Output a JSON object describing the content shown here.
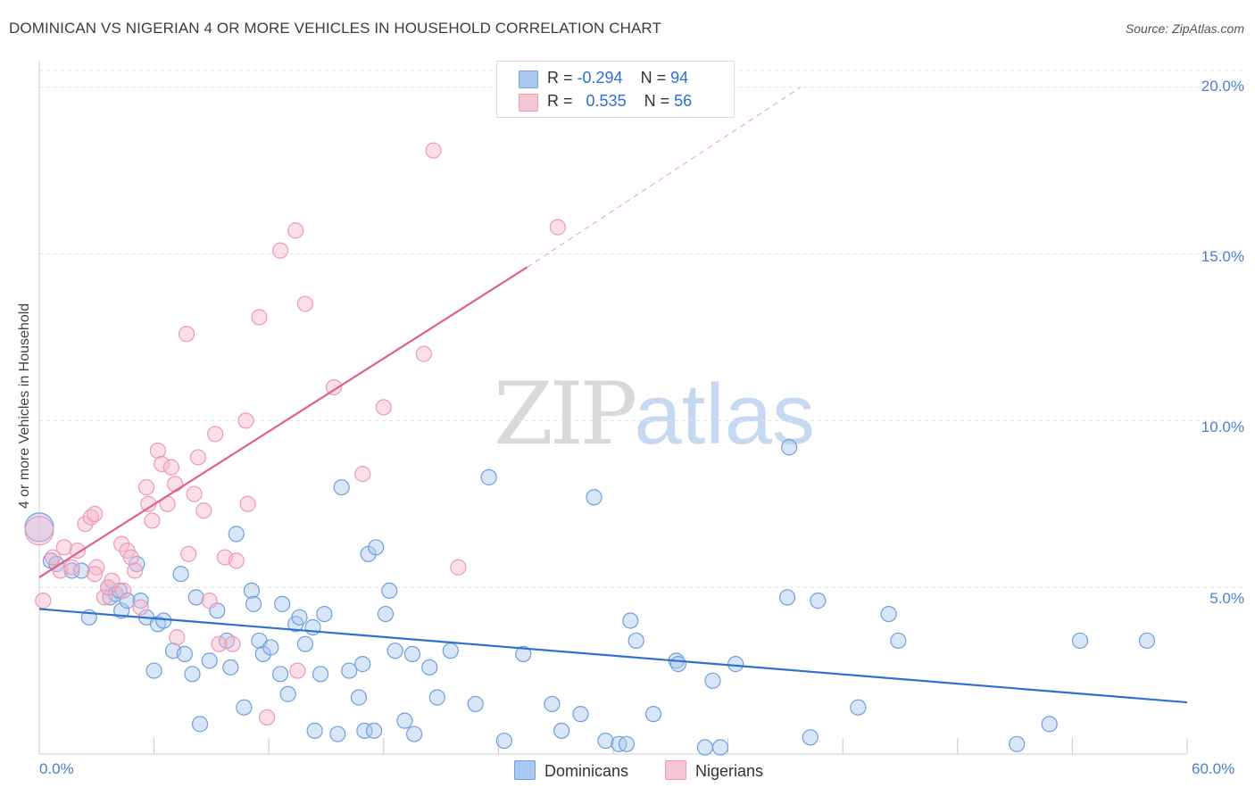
{
  "title": "DOMINICAN VS NIGERIAN 4 OR MORE VEHICLES IN HOUSEHOLD CORRELATION CHART",
  "source": "Source: ZipAtlas.com",
  "watermark": {
    "zip": "ZIP",
    "atlas": "atlas"
  },
  "stats": {
    "dominicans": {
      "r_label": "R =",
      "r_value": "-0.294",
      "n_label": "N =",
      "n_value": "94"
    },
    "nigerians": {
      "r_label": "R =",
      "r_value": "0.535",
      "n_label": "N =",
      "n_value": "56"
    }
  },
  "colors": {
    "dominicans_fill": "#a9c8f0",
    "dominicans_stroke": "#6f9fdc",
    "dominicans_line": "#2f6fcf",
    "nigerians_fill": "#f7b6cb",
    "nigerians_stroke": "#ec9ab5",
    "nigerians_line": "#e0608c",
    "grid": "#e3e3e3",
    "axis_text": "#4a7fd0"
  },
  "chart_data": {
    "type": "scatter",
    "title": "DOMINICAN VS NIGERIAN 4 OR MORE VEHICLES IN HOUSEHOLD CORRELATION CHART",
    "xlabel": "",
    "ylabel": "4 or more Vehicles in Household",
    "xlim": [
      0,
      60
    ],
    "ylim": [
      0,
      20.5
    ],
    "x_tick_labels": [
      "0.0%",
      "60.0%"
    ],
    "y_ticks": [
      5,
      10,
      15,
      20
    ],
    "y_tick_labels": [
      "5.0%",
      "10.0%",
      "15.0%",
      "20.0%"
    ],
    "legend": [
      "Dominicans",
      "Nigerians"
    ],
    "series": [
      {
        "name": "Dominicans",
        "r": -0.294,
        "n": 94,
        "trend": {
          "x0": 0,
          "y0": 4.35,
          "x1": 60,
          "y1": 1.55
        },
        "points": [
          [
            0.0,
            6.8
          ],
          [
            0.6,
            5.8
          ],
          [
            0.9,
            5.7
          ],
          [
            1.7,
            5.5
          ],
          [
            2.2,
            5.5
          ],
          [
            3.6,
            5.0
          ],
          [
            3.7,
            4.7
          ],
          [
            4.0,
            4.8
          ],
          [
            2.6,
            4.1
          ],
          [
            4.2,
            4.9
          ],
          [
            4.3,
            4.3
          ],
          [
            4.6,
            4.6
          ],
          [
            5.1,
            5.7
          ],
          [
            5.3,
            4.6
          ],
          [
            5.6,
            4.1
          ],
          [
            6.2,
            3.9
          ],
          [
            6.5,
            4.0
          ],
          [
            6.0,
            2.5
          ],
          [
            7.0,
            3.1
          ],
          [
            7.4,
            5.4
          ],
          [
            7.6,
            3.0
          ],
          [
            8.0,
            2.4
          ],
          [
            8.2,
            4.7
          ],
          [
            8.4,
            0.9
          ],
          [
            8.9,
            2.8
          ],
          [
            9.3,
            4.3
          ],
          [
            9.8,
            3.4
          ],
          [
            10.0,
            2.6
          ],
          [
            10.3,
            6.6
          ],
          [
            10.7,
            1.4
          ],
          [
            11.1,
            4.9
          ],
          [
            11.5,
            3.4
          ],
          [
            11.7,
            3.0
          ],
          [
            12.1,
            3.2
          ],
          [
            12.6,
            2.4
          ],
          [
            12.7,
            4.5
          ],
          [
            13.0,
            1.8
          ],
          [
            13.4,
            3.9
          ],
          [
            13.6,
            4.1
          ],
          [
            13.9,
            3.3
          ],
          [
            14.3,
            3.8
          ],
          [
            14.4,
            0.7
          ],
          [
            14.7,
            2.4
          ],
          [
            14.9,
            4.2
          ],
          [
            15.6,
            0.6
          ],
          [
            15.8,
            8.0
          ],
          [
            16.2,
            2.5
          ],
          [
            16.7,
            1.7
          ],
          [
            16.9,
            2.7
          ],
          [
            17.0,
            0.7
          ],
          [
            17.2,
            6.0
          ],
          [
            17.5,
            0.7
          ],
          [
            17.6,
            6.2
          ],
          [
            18.1,
            4.2
          ],
          [
            18.3,
            4.9
          ],
          [
            18.6,
            3.1
          ],
          [
            19.1,
            1.0
          ],
          [
            19.6,
            0.6
          ],
          [
            20.4,
            2.6
          ],
          [
            20.8,
            1.7
          ],
          [
            21.5,
            3.1
          ],
          [
            22.8,
            1.5
          ],
          [
            23.5,
            8.3
          ],
          [
            24.3,
            0.4
          ],
          [
            25.3,
            3.0
          ],
          [
            26.8,
            1.5
          ],
          [
            27.3,
            0.7
          ],
          [
            28.3,
            1.2
          ],
          [
            29.0,
            7.7
          ],
          [
            29.6,
            0.4
          ],
          [
            30.3,
            0.3
          ],
          [
            30.7,
            0.3
          ],
          [
            30.9,
            4.0
          ],
          [
            31.2,
            3.4
          ],
          [
            32.1,
            1.2
          ],
          [
            33.3,
            2.8
          ],
          [
            33.4,
            2.7
          ],
          [
            34.8,
            0.2
          ],
          [
            35.2,
            2.2
          ],
          [
            35.6,
            0.2
          ],
          [
            36.4,
            2.7
          ],
          [
            39.2,
            9.2
          ],
          [
            39.1,
            4.7
          ],
          [
            40.3,
            0.5
          ],
          [
            40.7,
            4.6
          ],
          [
            42.8,
            1.4
          ],
          [
            44.4,
            4.2
          ],
          [
            44.9,
            3.4
          ],
          [
            51.1,
            0.3
          ],
          [
            52.8,
            0.9
          ],
          [
            54.4,
            3.4
          ],
          [
            57.9,
            3.4
          ],
          [
            19.5,
            3.0
          ],
          [
            11.2,
            4.5
          ]
        ]
      },
      {
        "name": "Nigerians",
        "r": 0.535,
        "n": 56,
        "trend": {
          "x0": 0,
          "y0": 5.3,
          "x1": 25.5,
          "y1": 14.6
        },
        "trend_dashed": {
          "x0": 25.5,
          "y0": 14.6,
          "x1": 39.8,
          "y1": 20.0
        },
        "points": [
          [
            0.0,
            6.7
          ],
          [
            0.2,
            4.6
          ],
          [
            0.7,
            5.9
          ],
          [
            1.1,
            5.5
          ],
          [
            1.3,
            6.2
          ],
          [
            1.7,
            5.6
          ],
          [
            2.0,
            6.1
          ],
          [
            2.4,
            6.9
          ],
          [
            2.7,
            7.1
          ],
          [
            2.9,
            7.2
          ],
          [
            3.0,
            5.6
          ],
          [
            3.4,
            4.7
          ],
          [
            3.6,
            5.0
          ],
          [
            3.8,
            5.2
          ],
          [
            4.3,
            6.3
          ],
          [
            4.4,
            4.9
          ],
          [
            4.6,
            6.1
          ],
          [
            4.8,
            5.9
          ],
          [
            5.0,
            5.5
          ],
          [
            5.3,
            4.4
          ],
          [
            5.6,
            8.0
          ],
          [
            5.7,
            7.5
          ],
          [
            5.9,
            7.0
          ],
          [
            6.2,
            9.1
          ],
          [
            6.4,
            8.7
          ],
          [
            6.7,
            7.5
          ],
          [
            6.9,
            8.6
          ],
          [
            7.1,
            8.1
          ],
          [
            7.2,
            3.5
          ],
          [
            7.7,
            12.6
          ],
          [
            7.8,
            6.0
          ],
          [
            8.1,
            7.8
          ],
          [
            8.3,
            8.9
          ],
          [
            8.6,
            7.3
          ],
          [
            8.9,
            4.6
          ],
          [
            9.2,
            9.6
          ],
          [
            9.4,
            3.3
          ],
          [
            9.7,
            5.9
          ],
          [
            10.1,
            3.3
          ],
          [
            10.3,
            5.8
          ],
          [
            10.8,
            10.0
          ],
          [
            10.9,
            7.5
          ],
          [
            11.5,
            13.1
          ],
          [
            11.9,
            1.1
          ],
          [
            12.6,
            15.1
          ],
          [
            13.4,
            15.7
          ],
          [
            13.5,
            2.5
          ],
          [
            13.9,
            13.5
          ],
          [
            15.4,
            11.0
          ],
          [
            16.9,
            8.4
          ],
          [
            18.0,
            10.4
          ],
          [
            20.1,
            12.0
          ],
          [
            20.6,
            18.1
          ],
          [
            21.9,
            5.6
          ],
          [
            27.1,
            15.8
          ],
          [
            2.9,
            5.4
          ]
        ]
      }
    ]
  },
  "legend": {
    "dominicans": "Dominicans",
    "nigerians": "Nigerians"
  }
}
